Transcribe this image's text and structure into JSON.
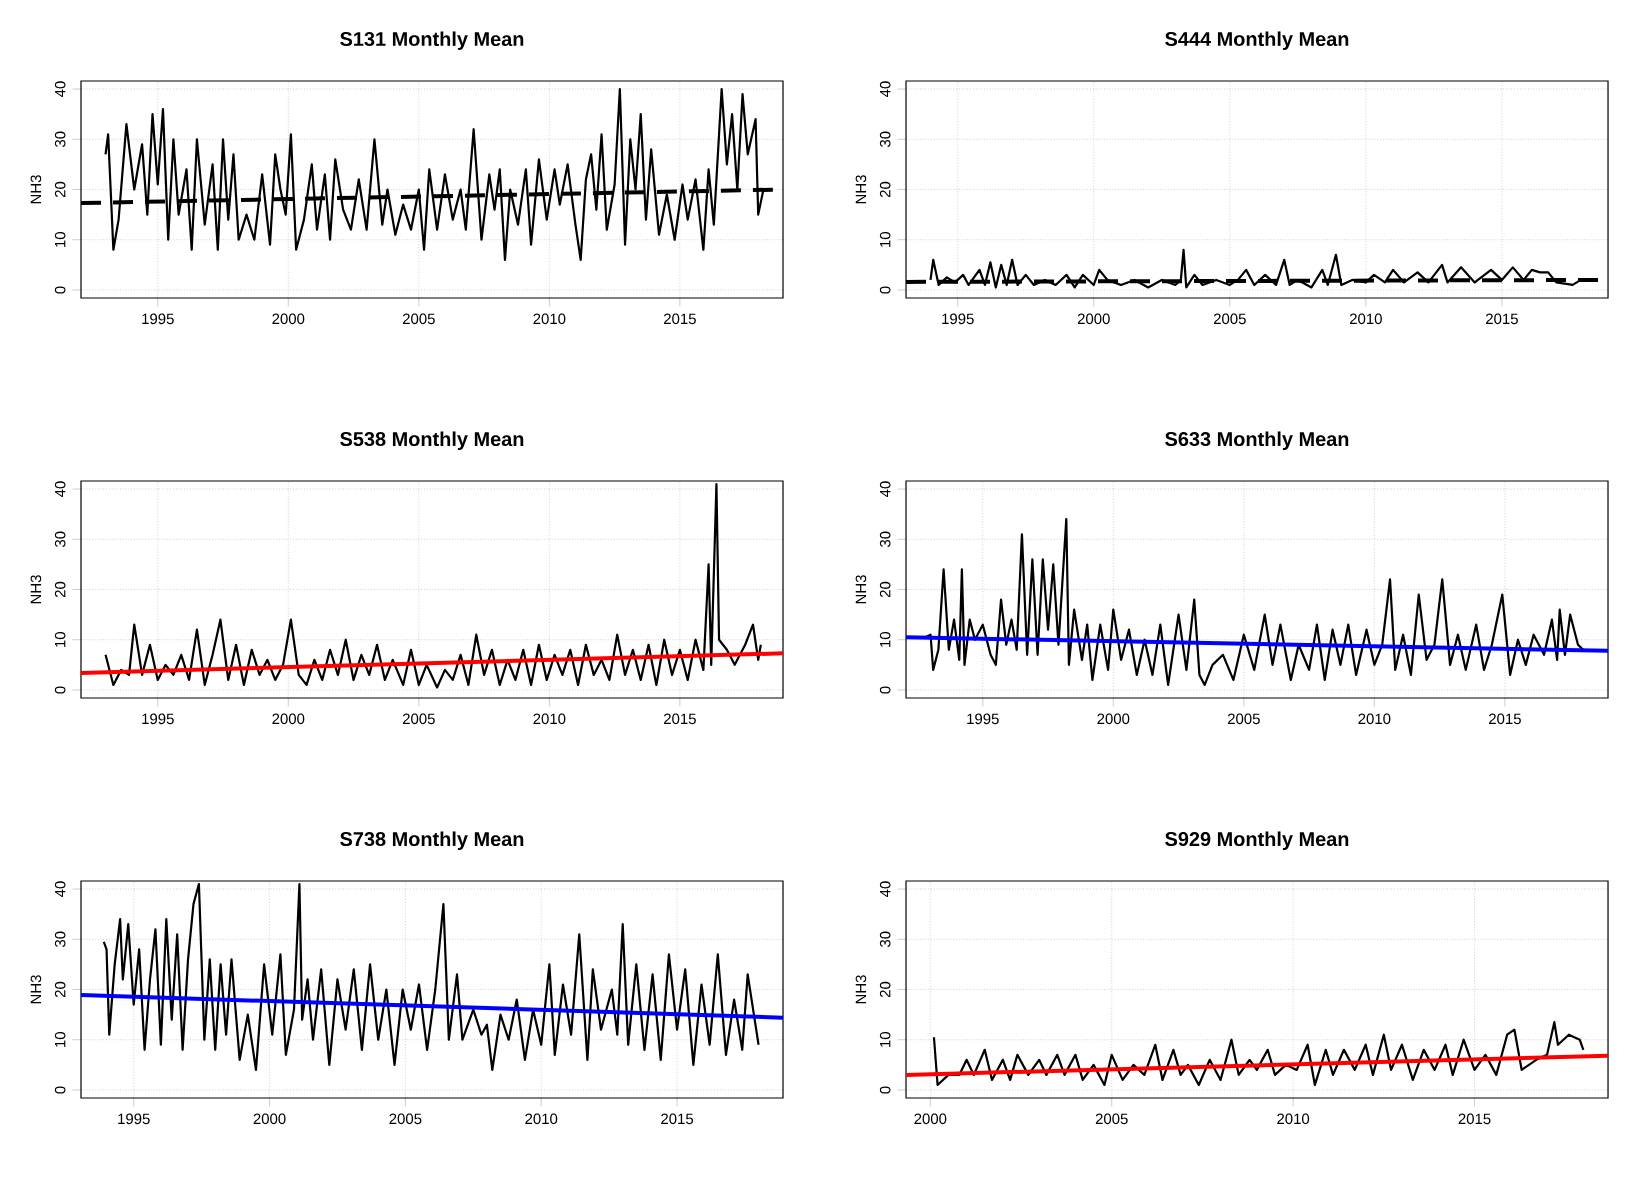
{
  "chart_data": [
    {
      "type": "line",
      "title": "S131 Monthly Mean",
      "ylabel": "NH3",
      "xlim": [
        1992.06,
        2018.95
      ],
      "ylim": [
        -1.6,
        41.6
      ],
      "xticks": [
        1995,
        2000,
        2005,
        2010,
        2015
      ],
      "yticks": [
        0,
        10,
        20,
        30,
        40
      ],
      "grid": true,
      "series": [
        {
          "color": "#000000",
          "x": [
            1993.0,
            1993.1,
            1993.3,
            1993.5,
            1993.8,
            1994.1,
            1994.4,
            1994.6,
            1994.8,
            1995.0,
            1995.2,
            1995.4,
            1995.6,
            1995.8,
            1996.1,
            1996.3,
            1996.5,
            1996.8,
            1997.1,
            1997.3,
            1997.5,
            1997.7,
            1997.9,
            1998.1,
            1998.4,
            1998.7,
            1999.0,
            1999.3,
            1999.5,
            1999.7,
            1999.9,
            2000.1,
            2000.3,
            2000.6,
            2000.9,
            2001.1,
            2001.4,
            2001.6,
            2001.8,
            2002.1,
            2002.4,
            2002.7,
            2003.0,
            2003.3,
            2003.6,
            2003.8,
            2004.1,
            2004.4,
            2004.7,
            2005.0,
            2005.2,
            2005.4,
            2005.7,
            2006.0,
            2006.3,
            2006.6,
            2006.8,
            2007.1,
            2007.4,
            2007.7,
            2007.9,
            2008.1,
            2008.3,
            2008.5,
            2008.8,
            2009.1,
            2009.3,
            2009.6,
            2009.9,
            2010.2,
            2010.4,
            2010.7,
            2011.0,
            2011.2,
            2011.4,
            2011.6,
            2011.8,
            2012.0,
            2012.2,
            2012.5,
            2012.7,
            2012.9,
            2013.1,
            2013.3,
            2013.5,
            2013.7,
            2013.9,
            2014.2,
            2014.5,
            2014.8,
            2015.1,
            2015.3,
            2015.6,
            2015.9,
            2016.1,
            2016.3,
            2016.6,
            2016.8,
            2017.0,
            2017.2,
            2017.4,
            2017.6,
            2017.9,
            2018.0,
            2018.2
          ],
          "values": [
            27,
            31,
            8,
            14,
            33,
            20,
            29,
            15,
            35,
            21,
            36,
            10,
            30,
            15,
            24,
            8,
            30,
            13,
            25,
            8,
            30,
            14,
            27,
            10,
            15,
            10,
            23,
            9,
            27,
            20,
            15,
            31,
            8,
            14,
            25,
            12,
            23,
            10,
            26,
            16,
            12,
            22,
            12,
            30,
            13,
            20,
            11,
            17,
            12,
            20,
            8,
            24,
            12,
            23,
            14,
            20,
            12,
            32,
            10,
            23,
            16,
            24,
            6,
            20,
            13,
            24,
            9,
            26,
            14,
            24,
            17,
            25,
            13,
            6,
            22,
            27,
            16,
            31,
            12,
            21,
            40,
            9,
            30,
            20,
            35,
            14,
            28,
            11,
            19,
            10,
            21,
            14,
            22,
            8,
            24,
            13,
            40,
            25,
            35,
            20,
            39,
            27,
            34,
            15,
            20
          ]
        },
        {
          "type": "line",
          "color": "#000000",
          "line_style": "dashed",
          "x": [
            1992.06,
            2018.95
          ],
          "values": [
            17.3,
            20.0
          ]
        }
      ]
    },
    {
      "type": "line",
      "title": "S444 Monthly Mean",
      "ylabel": "NH3",
      "xlim": [
        1993.1,
        2018.9
      ],
      "ylim": [
        -1.6,
        41.6
      ],
      "xticks": [
        1995,
        2000,
        2005,
        2010,
        2015
      ],
      "yticks": [
        0,
        10,
        20,
        30,
        40
      ],
      "grid": true,
      "series": [
        {
          "color": "#000000",
          "x": [
            1994.0,
            1994.1,
            1994.3,
            1994.6,
            1994.9,
            1995.2,
            1995.4,
            1995.8,
            1996.0,
            1996.2,
            1996.4,
            1996.6,
            1996.8,
            1997.0,
            1997.2,
            1997.5,
            1997.8,
            1998.2,
            1998.6,
            1999.0,
            1999.3,
            1999.6,
            2000.0,
            2000.2,
            2000.5,
            2001.0,
            2001.5,
            2002.0,
            2002.5,
            2003.0,
            2003.2,
            2003.3,
            2003.4,
            2003.7,
            2004.0,
            2004.5,
            2005.0,
            2005.3,
            2005.6,
            2005.9,
            2006.3,
            2006.7,
            2007.0,
            2007.2,
            2007.5,
            2008.0,
            2008.4,
            2008.6,
            2008.9,
            2009.1,
            2009.5,
            2010.0,
            2010.3,
            2010.7,
            2011.0,
            2011.4,
            2011.9,
            2012.3,
            2012.8,
            2013.0,
            2013.5,
            2014.0,
            2014.6,
            2015.0,
            2015.4,
            2015.8,
            2016.1,
            2016.4,
            2016.7,
            2017.0,
            2017.6,
            2017.9,
            2018.3
          ],
          "values": [
            2,
            6,
            1,
            2.5,
            1.5,
            3,
            1,
            4,
            1,
            5.5,
            0.5,
            5,
            1,
            6,
            1,
            3,
            1,
            2,
            1,
            3,
            0.5,
            3,
            1,
            4,
            2,
            1,
            2,
            0.5,
            2,
            1,
            2,
            8,
            0.5,
            3,
            1,
            2,
            1,
            2,
            4,
            1,
            3,
            1,
            6,
            1,
            2,
            0.5,
            4,
            1,
            7,
            1,
            2,
            1.5,
            3,
            1.5,
            4,
            1.5,
            3.5,
            1.5,
            5,
            1.5,
            4.5,
            1.5,
            4,
            2,
            4.5,
            2,
            4,
            3.5,
            3.5,
            1.5,
            1,
            2,
            2
          ]
        },
        {
          "type": "line",
          "color": "#000000",
          "line_style": "dashed",
          "x": [
            1993.1,
            2018.9
          ],
          "values": [
            1.6,
            2.0
          ]
        }
      ]
    },
    {
      "type": "line",
      "title": "S538 Monthly Mean",
      "ylabel": "NH3",
      "xlim": [
        1992.06,
        2018.95
      ],
      "ylim": [
        -1.6,
        41.6
      ],
      "xticks": [
        1995,
        2000,
        2005,
        2010,
        2015
      ],
      "yticks": [
        0,
        10,
        20,
        30,
        40
      ],
      "grid": true,
      "series": [
        {
          "color": "#000000",
          "x": [
            1993.0,
            1993.3,
            1993.6,
            1993.9,
            1994.1,
            1994.4,
            1994.7,
            1995.0,
            1995.3,
            1995.6,
            1995.9,
            1996.2,
            1996.5,
            1996.8,
            1997.1,
            1997.4,
            1997.7,
            1998.0,
            1998.3,
            1998.6,
            1998.9,
            1999.2,
            1999.5,
            1999.8,
            2000.1,
            2000.4,
            2000.7,
            2001.0,
            2001.3,
            2001.6,
            2001.9,
            2002.2,
            2002.5,
            2002.8,
            2003.1,
            2003.4,
            2003.7,
            2004.0,
            2004.4,
            2004.7,
            2005.0,
            2005.3,
            2005.7,
            2006.0,
            2006.3,
            2006.6,
            2006.9,
            2007.2,
            2007.5,
            2007.8,
            2008.1,
            2008.4,
            2008.7,
            2009.0,
            2009.3,
            2009.6,
            2009.9,
            2010.2,
            2010.5,
            2010.8,
            2011.1,
            2011.4,
            2011.7,
            2012.0,
            2012.3,
            2012.6,
            2012.9,
            2013.2,
            2013.5,
            2013.8,
            2014.1,
            2014.4,
            2014.7,
            2015.0,
            2015.3,
            2015.6,
            2015.9,
            2016.1,
            2016.2,
            2016.4,
            2016.5,
            2016.8,
            2017.1,
            2017.5,
            2017.8,
            2018.0,
            2018.1
          ],
          "values": [
            7,
            1,
            4,
            3,
            13,
            3,
            9,
            2,
            5,
            3,
            7,
            2,
            12,
            1,
            7,
            14,
            2,
            9,
            1,
            8,
            3,
            6,
            2,
            5,
            14,
            3,
            1,
            6,
            2,
            8,
            3,
            10,
            2,
            7,
            3,
            9,
            2,
            6,
            1,
            8,
            1,
            5,
            0.5,
            4,
            2,
            7,
            1,
            11,
            3,
            8,
            1,
            6,
            2,
            8,
            1,
            9,
            2,
            7,
            3,
            8,
            1,
            9,
            3,
            6,
            2,
            11,
            3,
            8,
            2,
            9,
            1,
            10,
            3,
            8,
            2,
            10,
            4,
            25,
            5,
            41,
            10,
            8,
            5,
            9,
            13,
            6,
            9
          ]
        },
        {
          "type": "line",
          "color": "#ff0000",
          "x": [
            1992.06,
            2018.95
          ],
          "values": [
            3.4,
            7.3
          ]
        }
      ]
    },
    {
      "type": "line",
      "title": "S633 Monthly Mean",
      "ylabel": "NH3",
      "xlim": [
        1992.06,
        2018.95
      ],
      "ylim": [
        -1.6,
        41.6
      ],
      "xticks": [
        1995,
        2000,
        2005,
        2010,
        2015
      ],
      "yticks": [
        0,
        10,
        20,
        30,
        40
      ],
      "grid": true,
      "series": [
        {
          "color": "#000000",
          "x": [
            1992.8,
            1993.0,
            1993.1,
            1993.3,
            1993.5,
            1993.7,
            1993.9,
            1994.1,
            1994.2,
            1994.3,
            1994.5,
            1994.7,
            1995.0,
            1995.3,
            1995.5,
            1995.7,
            1995.9,
            1996.1,
            1996.3,
            1996.5,
            1996.7,
            1996.9,
            1997.1,
            1997.3,
            1997.5,
            1997.7,
            1997.9,
            1998.2,
            1998.3,
            1998.5,
            1998.8,
            1999.0,
            1999.2,
            1999.5,
            1999.8,
            2000.0,
            2000.3,
            2000.6,
            2000.9,
            2001.2,
            2001.5,
            2001.8,
            2002.1,
            2002.5,
            2002.8,
            2003.1,
            2003.3,
            2003.5,
            2003.8,
            2004.2,
            2004.6,
            2005.0,
            2005.4,
            2005.8,
            2006.1,
            2006.4,
            2006.8,
            2007.1,
            2007.5,
            2007.8,
            2008.1,
            2008.4,
            2008.7,
            2009.0,
            2009.3,
            2009.7,
            2010.0,
            2010.3,
            2010.6,
            2010.8,
            2011.1,
            2011.4,
            2011.7,
            2012.0,
            2012.3,
            2012.6,
            2012.9,
            2013.2,
            2013.5,
            2013.9,
            2014.2,
            2014.5,
            2014.9,
            2015.2,
            2015.5,
            2015.8,
            2016.1,
            2016.5,
            2016.8,
            2017.0,
            2017.1,
            2017.3,
            2017.5,
            2017.8,
            2018.0
          ],
          "values": [
            10.5,
            11,
            4,
            8,
            24,
            8,
            14,
            6,
            24,
            5,
            14,
            10,
            13,
            7,
            5,
            18,
            9,
            14,
            8,
            31,
            7,
            26,
            7,
            26,
            12,
            25,
            9,
            34,
            5,
            16,
            6,
            13,
            2,
            13,
            4,
            16,
            6,
            12,
            3,
            10,
            3,
            13,
            1,
            15,
            4,
            18,
            3,
            1,
            5,
            7,
            2,
            11,
            4,
            15,
            5,
            13,
            2,
            9,
            4,
            13,
            2,
            12,
            5,
            13,
            3,
            12,
            5,
            9,
            22,
            4,
            11,
            3,
            19,
            6,
            9,
            22,
            5,
            11,
            4,
            13,
            4,
            9,
            19,
            3,
            10,
            5,
            11,
            7,
            14,
            6,
            16,
            7,
            15,
            9,
            8
          ]
        },
        {
          "type": "line",
          "color": "#0000ff",
          "x": [
            1992.06,
            2018.95
          ],
          "values": [
            10.5,
            7.8
          ]
        }
      ]
    },
    {
      "type": "line",
      "title": "S738 Monthly Mean",
      "ylabel": "NH3",
      "xlim": [
        1993.06,
        2018.9
      ],
      "ylim": [
        -1.6,
        41.6
      ],
      "xticks": [
        1995,
        2000,
        2005,
        2010,
        2015
      ],
      "yticks": [
        0,
        10,
        20,
        30,
        40
      ],
      "grid": true,
      "series": [
        {
          "color": "#000000",
          "x": [
            1993.9,
            1994.0,
            1994.1,
            1994.3,
            1994.5,
            1994.6,
            1994.8,
            1995.0,
            1995.2,
            1995.4,
            1995.6,
            1995.8,
            1996.0,
            1996.2,
            1996.4,
            1996.6,
            1996.8,
            1997.0,
            1997.2,
            1997.4,
            1997.6,
            1997.8,
            1998.0,
            1998.2,
            1998.4,
            1998.6,
            1998.9,
            1999.2,
            1999.5,
            1999.8,
            2000.1,
            2000.4,
            2000.6,
            2000.9,
            2001.1,
            2001.2,
            2001.4,
            2001.6,
            2001.9,
            2002.2,
            2002.5,
            2002.8,
            2003.1,
            2003.4,
            2003.7,
            2004.0,
            2004.3,
            2004.6,
            2004.9,
            2005.2,
            2005.5,
            2005.8,
            2006.1,
            2006.4,
            2006.6,
            2006.9,
            2007.1,
            2007.5,
            2007.8,
            2008.0,
            2008.2,
            2008.5,
            2008.8,
            2009.1,
            2009.4,
            2009.7,
            2010.0,
            2010.3,
            2010.5,
            2010.8,
            2011.1,
            2011.4,
            2011.7,
            2011.9,
            2012.2,
            2012.6,
            2012.8,
            2013.0,
            2013.2,
            2013.5,
            2013.8,
            2014.1,
            2014.4,
            2014.7,
            2015.0,
            2015.3,
            2015.6,
            2015.9,
            2016.2,
            2016.5,
            2016.8,
            2017.1,
            2017.4,
            2017.6,
            2017.8,
            2018.0
          ],
          "values": [
            29.5,
            28,
            11,
            25,
            34,
            22,
            33,
            17,
            28,
            8,
            22,
            32,
            9,
            34,
            14,
            31,
            8,
            26,
            37,
            41,
            10,
            26,
            8,
            25,
            11,
            26,
            6,
            15,
            4,
            25,
            11,
            27,
            7,
            16,
            41,
            14,
            22,
            10,
            24,
            5,
            22,
            12,
            24,
            8,
            25,
            10,
            20,
            5,
            20,
            12,
            21,
            8,
            20,
            37,
            10,
            23,
            10,
            16,
            11,
            13,
            4,
            15,
            10,
            18,
            6,
            16,
            9,
            25,
            7,
            21,
            11,
            31,
            6,
            24,
            12,
            20,
            11,
            33,
            9,
            25,
            8,
            23,
            6,
            27,
            12,
            24,
            5,
            21,
            9,
            27,
            7,
            18,
            8,
            23,
            16,
            9
          ]
        },
        {
          "type": "line",
          "color": "#0000ff",
          "x": [
            1993.06,
            2018.9
          ],
          "values": [
            18.9,
            14.4
          ]
        }
      ]
    },
    {
      "type": "line",
      "title": "S929 Monthly Mean",
      "ylabel": "NH3",
      "xlim": [
        1999.33,
        2018.68
      ],
      "ylim": [
        -1.6,
        41.6
      ],
      "xticks": [
        2000,
        2005,
        2010,
        2015
      ],
      "yticks": [
        0,
        10,
        20,
        30,
        40
      ],
      "grid": true,
      "series": [
        {
          "color": "#000000",
          "x": [
            2000.1,
            2000.2,
            2000.5,
            2000.8,
            2001.0,
            2001.2,
            2001.5,
            2001.7,
            2002.0,
            2002.2,
            2002.4,
            2002.7,
            2003.0,
            2003.2,
            2003.5,
            2003.7,
            2004.0,
            2004.2,
            2004.5,
            2004.8,
            2005.0,
            2005.3,
            2005.6,
            2005.9,
            2006.2,
            2006.4,
            2006.7,
            2006.9,
            2007.1,
            2007.4,
            2007.7,
            2008.0,
            2008.3,
            2008.5,
            2008.8,
            2009.0,
            2009.3,
            2009.5,
            2009.8,
            2010.1,
            2010.4,
            2010.6,
            2010.9,
            2011.1,
            2011.4,
            2011.7,
            2012.0,
            2012.2,
            2012.5,
            2012.7,
            2013.0,
            2013.3,
            2013.6,
            2013.9,
            2014.2,
            2014.4,
            2014.7,
            2015.0,
            2015.3,
            2015.6,
            2015.9,
            2016.1,
            2016.3,
            2016.7,
            2017.0,
            2017.2,
            2017.3,
            2017.6,
            2017.9,
            2018.0
          ],
          "values": [
            10.5,
            1,
            3,
            3,
            6,
            3,
            8,
            2,
            6,
            2,
            7,
            3,
            6,
            3,
            7,
            3,
            7,
            2,
            5,
            1,
            7,
            2,
            5,
            3,
            9,
            2,
            8,
            3,
            5,
            1,
            6,
            2,
            10,
            3,
            6,
            4,
            8,
            3,
            5,
            4,
            9,
            1,
            8,
            3,
            8,
            4,
            9,
            3,
            11,
            4,
            9,
            2,
            8,
            4,
            9,
            3,
            10,
            4,
            7,
            3,
            11,
            12,
            4,
            6,
            7,
            13.5,
            9,
            11,
            10,
            8
          ]
        },
        {
          "type": "line",
          "color": "#ff0000",
          "x": [
            1999.33,
            2018.68
          ],
          "values": [
            3.0,
            6.8
          ]
        }
      ]
    }
  ]
}
